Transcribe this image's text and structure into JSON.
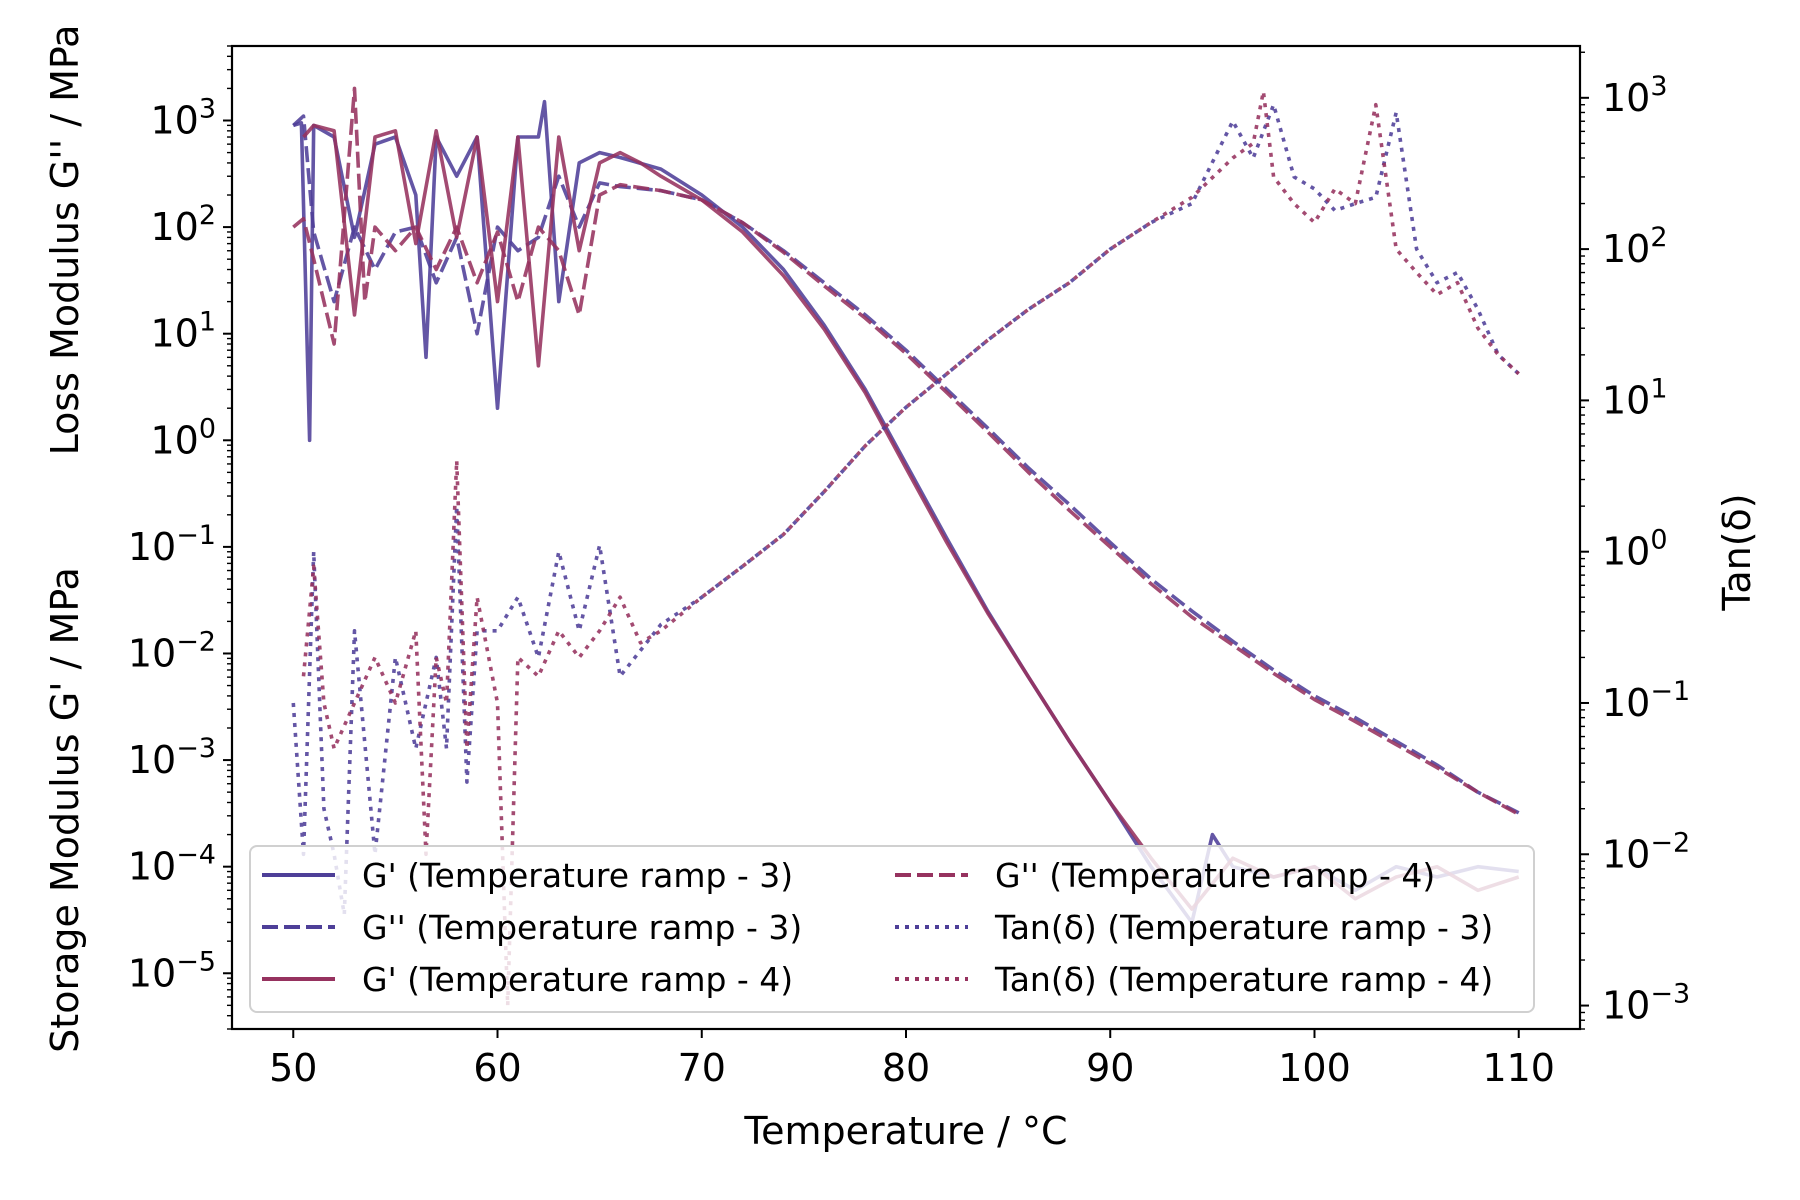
{
  "chart_data": {
    "type": "line",
    "xlabel": "Temperature / °C",
    "ylabel_left_top": "Loss Modulus G'' / MPa",
    "ylabel_left_bottom": "Storage Modulus G' / MPa",
    "ylabel_right": "Tan(δ)",
    "xlim": [
      47,
      113
    ],
    "ylim_left": [
      3e-06,
      5000
    ],
    "ylim_right": [
      0.0007,
      2200
    ],
    "yscale_left": "log",
    "yscale_right": "log",
    "grid": false,
    "legend_position": "lower-left",
    "x_ticks": [
      "50",
      "60",
      "70",
      "80",
      "90",
      "100",
      "110"
    ],
    "y_left_ticks": [
      {
        "base": "10",
        "exp": "3"
      },
      {
        "base": "10",
        "exp": "2"
      },
      {
        "base": "10",
        "exp": "1"
      },
      {
        "base": "10",
        "exp": "0"
      },
      {
        "base": "10",
        "exp": "−1"
      },
      {
        "base": "10",
        "exp": "−2"
      },
      {
        "base": "10",
        "exp": "−3"
      },
      {
        "base": "10",
        "exp": "−4"
      },
      {
        "base": "10",
        "exp": "−5"
      }
    ],
    "y_right_ticks": [
      {
        "base": "10",
        "exp": "3"
      },
      {
        "base": "10",
        "exp": "2"
      },
      {
        "base": "10",
        "exp": "1"
      },
      {
        "base": "10",
        "exp": "0"
      },
      {
        "base": "10",
        "exp": "−1"
      },
      {
        "base": "10",
        "exp": "−2"
      },
      {
        "base": "10",
        "exp": "−3"
      }
    ],
    "colors": {
      "ramp3": "#4e3f98",
      "ramp4": "#96325f"
    },
    "series": [
      {
        "name": "G' (Temperature ramp - 3)",
        "axis": "left",
        "style": "solid",
        "color": "#4e3f98",
        "x": [
          50,
          50.4,
          50.8,
          51,
          52,
          53,
          54,
          55,
          56,
          56.5,
          57,
          58,
          59,
          60,
          61,
          62,
          62.3,
          63,
          64,
          65,
          66,
          68,
          70,
          72,
          74,
          76,
          78,
          80,
          82,
          84,
          86,
          88,
          90,
          92,
          94,
          95,
          96,
          98,
          100,
          102,
          104,
          106,
          108,
          110
        ],
        "y": [
          900,
          950,
          1,
          900,
          700,
          80,
          600,
          700,
          200,
          6,
          700,
          300,
          700,
          2,
          700,
          700,
          1500,
          20,
          400,
          500,
          450,
          350,
          200,
          100,
          40,
          12,
          3,
          0.6,
          0.12,
          0.025,
          0.006,
          0.0015,
          0.0004,
          0.0001,
          3e-05,
          0.0002,
          0.0001,
          8e-05,
          0.0001,
          6e-05,
          0.0001,
          8e-05,
          0.0001,
          9e-05
        ]
      },
      {
        "name": "G'' (Temperature ramp - 3)",
        "axis": "left",
        "style": "dashed",
        "color": "#4e3f98",
        "x": [
          50,
          50.5,
          51,
          52,
          53,
          54,
          55,
          56,
          57,
          58,
          59,
          60,
          61,
          62,
          63,
          64,
          65,
          66,
          68,
          70,
          72,
          74,
          76,
          78,
          80,
          82,
          84,
          86,
          88,
          90,
          92,
          94,
          96,
          98,
          100,
          102,
          104,
          106,
          108,
          110
        ],
        "y": [
          900,
          1100,
          90,
          20,
          100,
          40,
          90,
          100,
          30,
          80,
          10,
          100,
          60,
          80,
          300,
          100,
          260,
          240,
          220,
          180,
          110,
          60,
          30,
          15,
          7,
          3,
          1.3,
          0.55,
          0.25,
          0.11,
          0.05,
          0.025,
          0.013,
          0.007,
          0.004,
          0.0025,
          0.0015,
          0.0009,
          0.0005,
          0.00032
        ]
      },
      {
        "name": "G' (Temperature ramp - 4)",
        "axis": "left",
        "style": "solid",
        "color": "#96325f",
        "x": [
          50.5,
          51,
          52,
          53,
          54,
          55,
          56,
          57,
          58,
          59,
          60,
          61,
          62,
          63,
          64,
          65,
          66,
          67,
          68,
          70,
          72,
          74,
          76,
          78,
          80,
          82,
          84,
          86,
          88,
          90,
          92,
          94,
          96,
          98,
          100,
          102,
          104,
          106,
          108,
          110
        ],
        "y": [
          700,
          900,
          800,
          15,
          700,
          800,
          70,
          800,
          80,
          700,
          20,
          700,
          5,
          700,
          60,
          400,
          500,
          400,
          300,
          180,
          90,
          35,
          11,
          2.8,
          0.55,
          0.11,
          0.024,
          0.006,
          0.0015,
          0.0004,
          0.00012,
          4e-05,
          0.00012,
          8e-05,
          0.0001,
          5e-05,
          8e-05,
          0.0001,
          6e-05,
          8e-05
        ]
      },
      {
        "name": "G'' (Temperature ramp - 4)",
        "axis": "left",
        "style": "dashed",
        "color": "#96325f",
        "x": [
          50,
          50.5,
          51,
          52,
          53,
          53.5,
          54,
          55,
          56,
          57,
          58,
          59,
          60,
          61,
          62,
          63,
          64,
          65,
          66,
          68,
          70,
          72,
          74,
          76,
          78,
          80,
          82,
          84,
          86,
          88,
          90,
          92,
          94,
          96,
          98,
          100,
          102,
          104,
          106,
          108,
          110
        ],
        "y": [
          100,
          120,
          50,
          8,
          2000,
          20,
          100,
          60,
          100,
          40,
          100,
          30,
          90,
          20,
          100,
          60,
          15,
          200,
          250,
          220,
          180,
          110,
          58,
          28,
          14,
          6.5,
          2.8,
          1.2,
          0.5,
          0.22,
          0.1,
          0.045,
          0.022,
          0.012,
          0.0065,
          0.0037,
          0.0023,
          0.0014,
          0.00085,
          0.0005,
          0.00031
        ]
      },
      {
        "name": "Tan(δ) (Temperature ramp - 3)",
        "axis": "right",
        "style": "dotted",
        "color": "#4e3f98",
        "x": [
          50,
          50.5,
          51,
          51.5,
          52,
          52.5,
          53,
          54,
          55,
          56,
          57,
          57.5,
          58,
          58.5,
          59,
          60,
          61,
          62,
          63,
          64,
          65,
          66,
          68,
          70,
          72,
          74,
          76,
          78,
          80,
          82,
          84,
          86,
          88,
          90,
          92,
          94,
          96,
          97,
          98,
          99,
          100,
          101,
          102,
          103,
          104,
          105,
          106,
          107,
          108,
          109,
          110
        ],
        "y": [
          0.1,
          0.01,
          1,
          0.02,
          0.01,
          0.004,
          0.3,
          0.01,
          0.2,
          0.05,
          0.2,
          0.05,
          2,
          0.03,
          0.3,
          0.3,
          0.5,
          0.2,
          1,
          0.3,
          1.1,
          0.15,
          0.33,
          0.5,
          0.8,
          1.3,
          2.5,
          5,
          9,
          15,
          25,
          40,
          60,
          100,
          150,
          200,
          700,
          400,
          900,
          300,
          250,
          180,
          200,
          220,
          800,
          100,
          60,
          70,
          40,
          20,
          15
        ]
      },
      {
        "name": "Tan(δ) (Temperature ramp - 4)",
        "axis": "right",
        "style": "dotted",
        "color": "#96325f",
        "x": [
          50.5,
          51,
          51.5,
          52,
          53,
          54,
          55,
          56,
          56.5,
          57,
          57.5,
          58,
          58.5,
          59,
          60,
          60.5,
          61,
          62,
          63,
          64,
          65,
          66,
          67,
          68,
          70,
          72,
          74,
          76,
          78,
          80,
          82,
          84,
          86,
          88,
          90,
          92,
          94,
          96,
          97,
          97.5,
          98,
          99,
          100,
          101,
          102,
          103,
          104,
          105,
          106,
          107,
          108,
          109,
          110
        ],
        "y": [
          0.15,
          0.8,
          0.1,
          0.05,
          0.1,
          0.2,
          0.1,
          0.3,
          0.01,
          0.2,
          0.1,
          4,
          0.05,
          0.5,
          0.1,
          0.001,
          0.2,
          0.15,
          0.3,
          0.2,
          0.3,
          0.5,
          0.25,
          0.3,
          0.5,
          0.8,
          1.3,
          2.5,
          5,
          9,
          15,
          25,
          40,
          60,
          100,
          150,
          220,
          400,
          500,
          1100,
          300,
          200,
          150,
          250,
          200,
          900,
          100,
          70,
          50,
          60,
          30,
          20,
          15
        ]
      }
    ]
  }
}
